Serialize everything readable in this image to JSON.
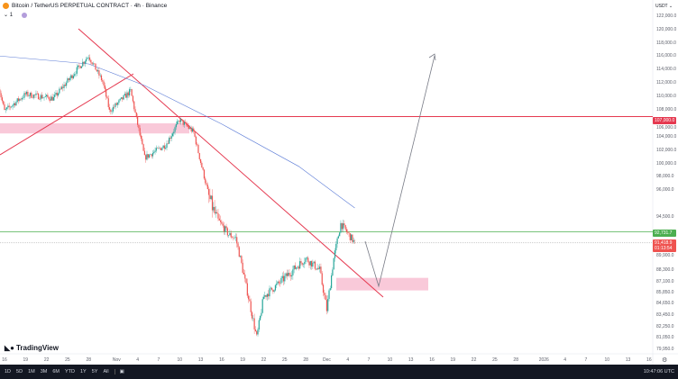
{
  "header": {
    "title": "Bitcoin / TetherUS PERPETUAL CONTRACT · 4h · Binance",
    "indicator_count": "1"
  },
  "currency": "USDT",
  "price_axis": [
    "122,000.0",
    "120,000.0",
    "118,000.0",
    "116,000.0",
    "114,000.0",
    "112,000.0",
    "110,000.0",
    "108,000.0",
    "106,000.0",
    "104,000.0",
    "102,000.0",
    "100,000.0",
    "98,000.0",
    "96,000.0",
    "94,500.0",
    "89,900.0",
    "88,300.0",
    "87,100.0",
    "85,850.0",
    "84,650.0",
    "83,450.0",
    "82,250.0",
    "81,050.0",
    "79,950.0"
  ],
  "price_axis_values": [
    122000,
    120000,
    118000,
    116000,
    114000,
    112000,
    110000,
    108000,
    106000,
    104000,
    102000,
    100000,
    98000,
    96000,
    94500,
    89900,
    88300,
    87100,
    85850,
    84650,
    83450,
    82250,
    81050,
    79950
  ],
  "tags": {
    "resistance": "107,000.0",
    "support": "92,731.7",
    "last_price": "91,418.9",
    "countdown": "01:13:54"
  },
  "time_axis": [
    "16",
    "19",
    "22",
    "25",
    "28",
    "Nov",
    "4",
    "7",
    "10",
    "13",
    "16",
    "19",
    "22",
    "25",
    "28",
    "Dec",
    "4",
    "7",
    "10",
    "13",
    "16",
    "19",
    "22",
    "25",
    "28",
    "2026",
    "4",
    "7",
    "10",
    "13",
    "16"
  ],
  "time_axis_dates": [
    "2025-10-16",
    "2025-10-19",
    "2025-10-22",
    "2025-10-25",
    "2025-10-28",
    "2025-11-01",
    "2025-11-04",
    "2025-11-07",
    "2025-11-10",
    "2025-11-13",
    "2025-11-16",
    "2025-11-19",
    "2025-11-22",
    "2025-11-25",
    "2025-11-28",
    "2025-12-01",
    "2025-12-04",
    "2025-12-07",
    "2025-12-10",
    "2025-12-13",
    "2025-12-16",
    "2025-12-19",
    "2025-12-22",
    "2025-12-25",
    "2025-12-28",
    "2026-01-01",
    "2026-01-04",
    "2026-01-07",
    "2026-01-10",
    "2026-01-13",
    "2026-01-16"
  ],
  "price_path": [
    [
      "2025-10-15",
      112200
    ],
    [
      "2025-10-16",
      107800
    ],
    [
      "2025-10-19",
      110300
    ],
    [
      "2025-10-23",
      109700
    ],
    [
      "2025-10-27",
      114800
    ],
    [
      "2025-10-28",
      116000
    ],
    [
      "2025-10-30",
      112200
    ],
    [
      "2025-10-31",
      107800
    ],
    [
      "2025-11-03",
      110800
    ],
    [
      "2025-11-05",
      100900
    ],
    [
      "2025-11-08",
      102800
    ],
    [
      "2025-11-10",
      106500
    ],
    [
      "2025-11-12",
      104700
    ],
    [
      "2025-11-14",
      95800
    ],
    [
      "2025-11-17",
      92400
    ],
    [
      "2025-11-18",
      92000
    ],
    [
      "2025-11-21",
      81050
    ],
    [
      "2025-11-22",
      85400
    ],
    [
      "2025-11-25",
      87500
    ],
    [
      "2025-11-28",
      89600
    ],
    [
      "2025-11-30",
      88300
    ],
    [
      "2025-12-01",
      84000
    ],
    [
      "2025-12-02",
      89600
    ],
    [
      "2025-12-03",
      93700
    ],
    [
      "2025-12-05",
      91400
    ]
  ],
  "moving_average": [
    [
      "2025-10-15",
      116000
    ],
    [
      "2025-10-28",
      114800
    ],
    [
      "2025-11-05",
      111600
    ],
    [
      "2025-11-16",
      105900
    ],
    [
      "2025-11-27",
      99600
    ],
    [
      "2025-12-05",
      95000
    ]
  ],
  "toolbar": {
    "ranges": [
      "1D",
      "5D",
      "1M",
      "3M",
      "6M",
      "YTD",
      "1Y",
      "5Y",
      "All"
    ],
    "clock": "10:47:06 UTC",
    "brand": "TradingView"
  },
  "colors": {
    "up": "#26a69a",
    "down": "#ef5350",
    "trend": "#e53950",
    "support": "#4caf50",
    "ma": "#5b7bd6",
    "zone": "#f8bbd0"
  }
}
